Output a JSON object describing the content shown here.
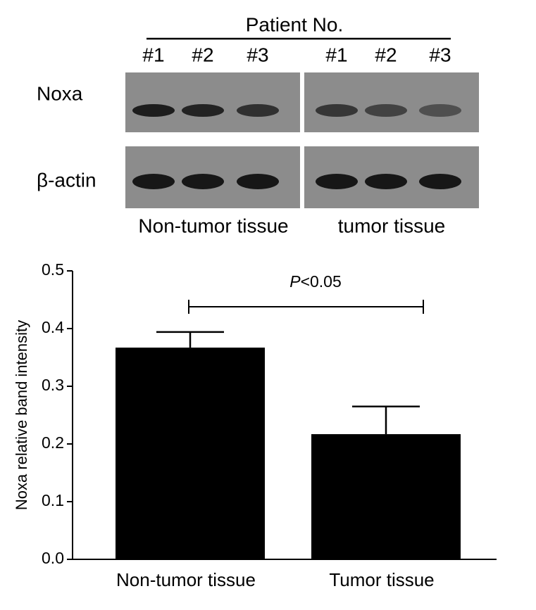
{
  "blot": {
    "header": "Patient No.",
    "lanes": [
      "#1",
      "#2",
      "#3",
      "#1",
      "#2",
      "#3"
    ],
    "rows": [
      "Noxa",
      "β-actin"
    ],
    "groups": [
      "Non-tumor tissue",
      "tumor tissue"
    ]
  },
  "chart_data": {
    "type": "bar",
    "ylabel": "Noxa relative band intensity",
    "categories": [
      "Non-tumor tissue",
      "Tumor tissue"
    ],
    "values": [
      0.367,
      0.217
    ],
    "errors": [
      0.027,
      0.048
    ],
    "color": "#000000",
    "ylim": [
      0,
      0.5
    ],
    "yticks": [
      {
        "value": 0,
        "label": "0.0"
      },
      0.1,
      0.2,
      0.3,
      0.4,
      0.5
    ],
    "significance": {
      "symbol": "P",
      "text": "<0.05"
    }
  }
}
